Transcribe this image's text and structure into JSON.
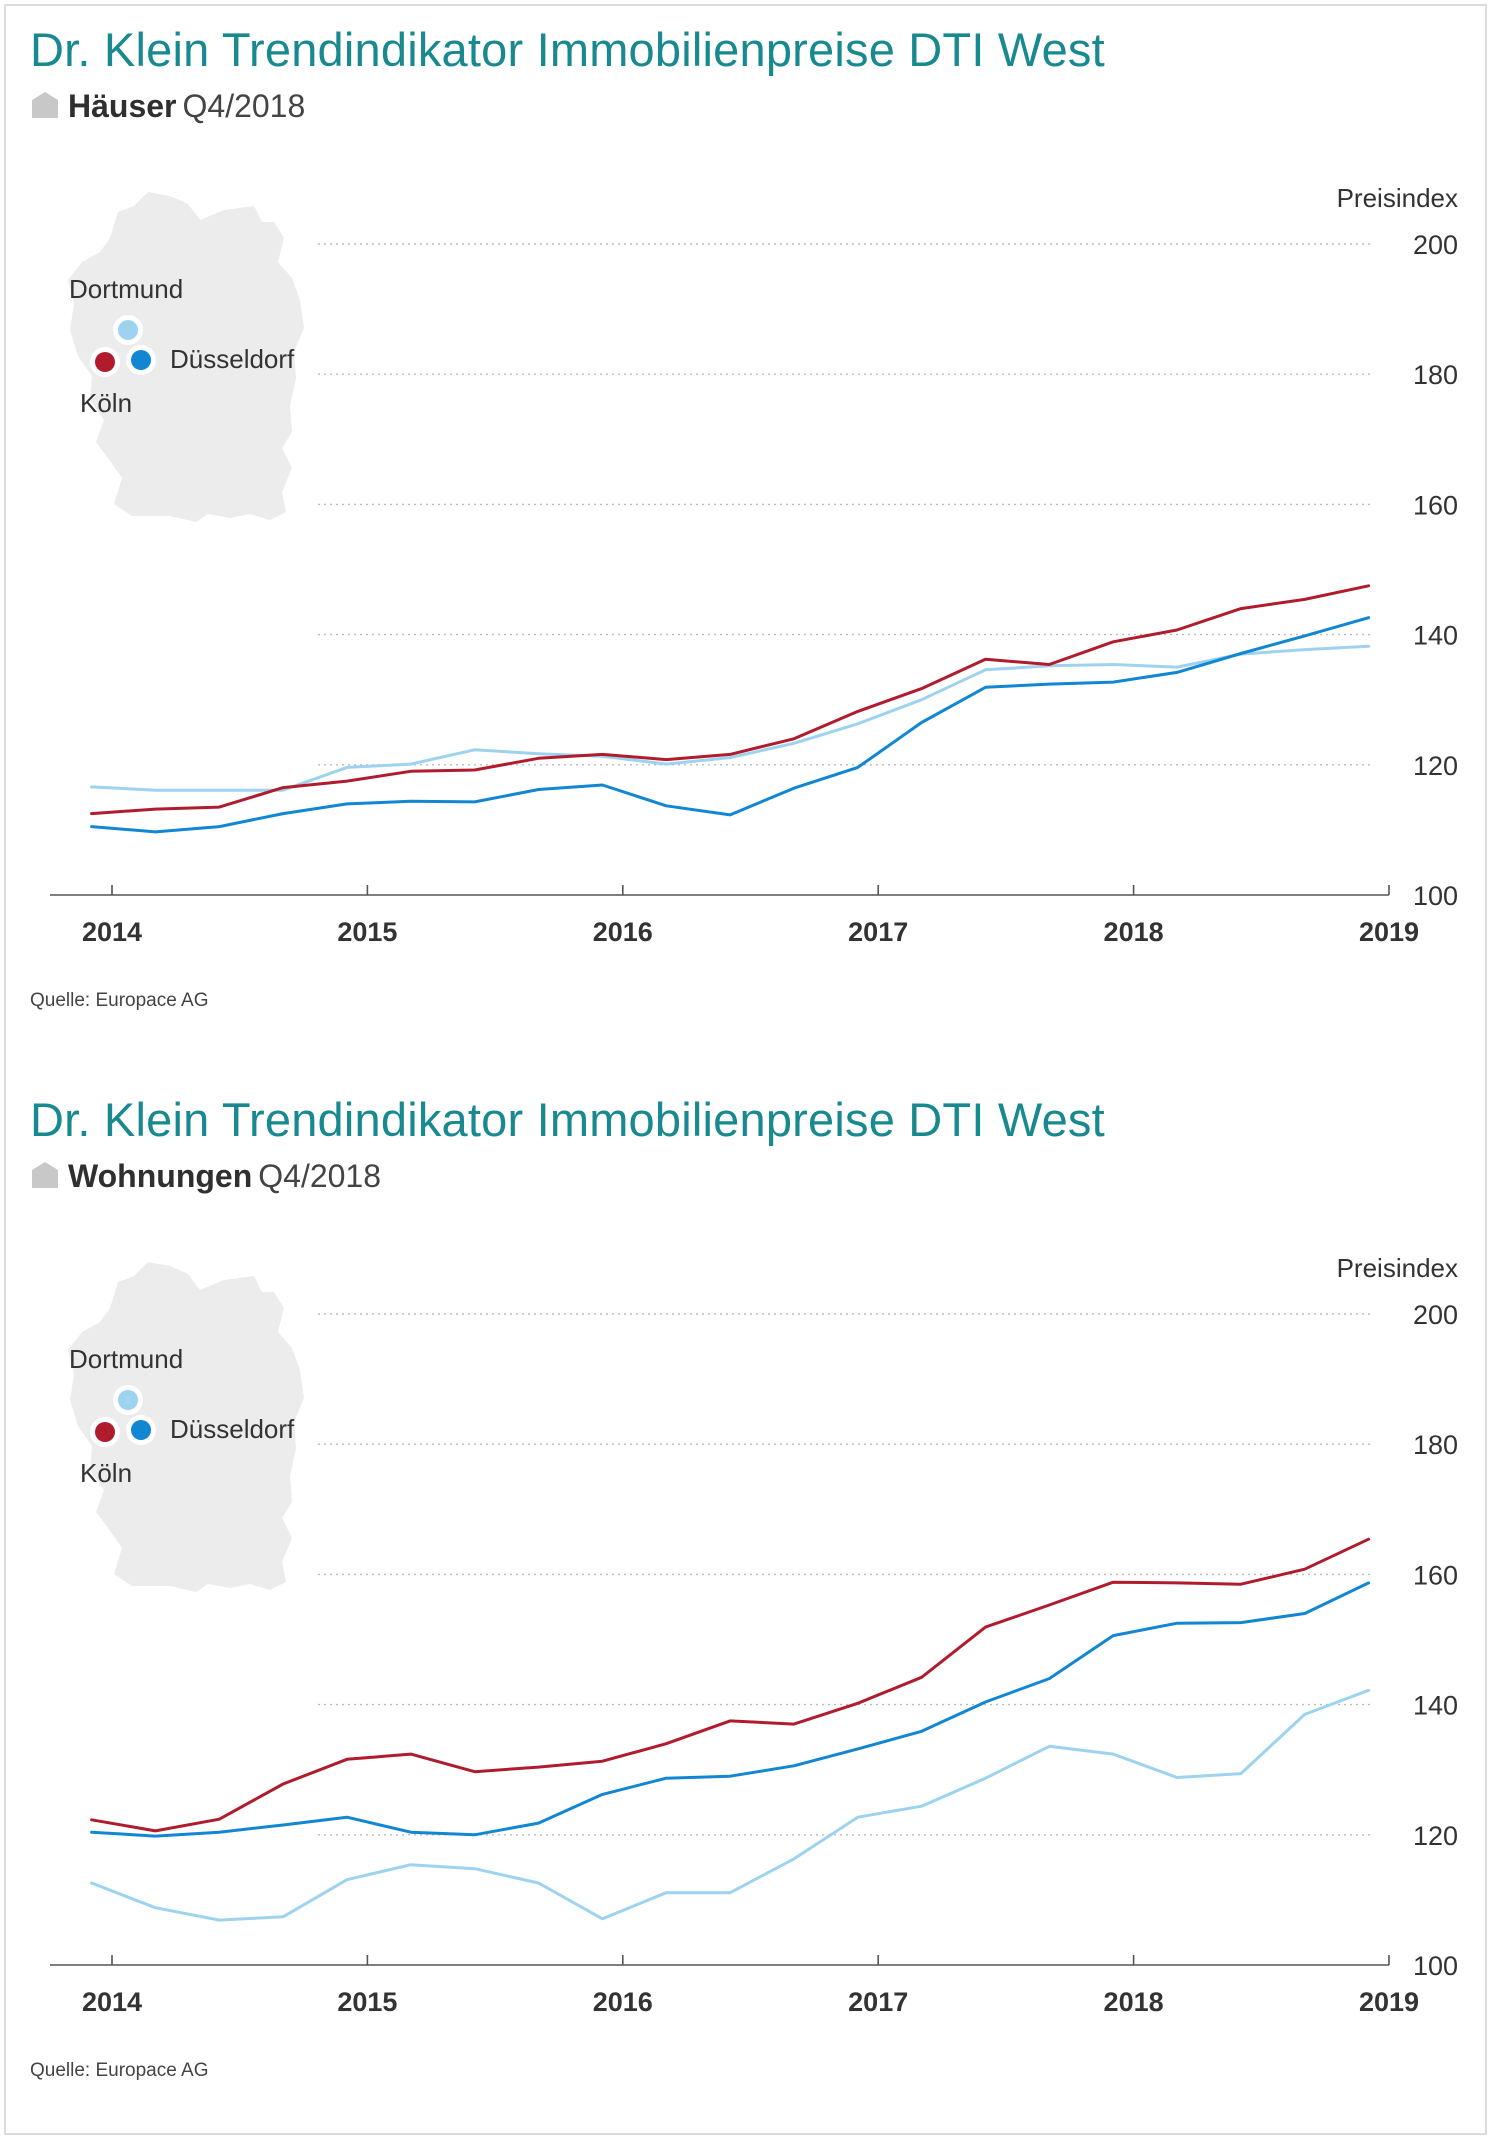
{
  "colors": {
    "title": "#17898f",
    "koeln": "#b01c2e",
    "duesseldorf": "#1187d4",
    "dortmund": "#9dd3ee",
    "grid": "#bbbbbb",
    "map": "#ececec"
  },
  "panels": [
    {
      "title": "Dr. Klein Trendindikator Immobilienpreise DTI West",
      "icon": "house-icon",
      "category": "Häuser",
      "period": "Q4/2018",
      "source": "Quelle: Europace AG",
      "map_labels": {
        "dortmund": "Dortmund",
        "duesseldorf": "Düsseldorf",
        "koeln": "Köln"
      },
      "chart_data": {
        "type": "line",
        "title": "",
        "xlabel": "",
        "ylabel": "Preisindex",
        "ylim": [
          100,
          200
        ],
        "xlim": [
          2014,
          2019
        ],
        "yticks": [
          "100",
          "120",
          "140",
          "160",
          "180",
          "200"
        ],
        "xticks": [
          "2014",
          "2015",
          "2016",
          "2017",
          "2018",
          "2019"
        ],
        "grid": true,
        "x": [
          2013.92,
          2014.17,
          2014.42,
          2014.67,
          2014.92,
          2015.17,
          2015.42,
          2015.67,
          2015.92,
          2016.17,
          2016.42,
          2016.67,
          2016.92,
          2017.17,
          2017.42,
          2017.67,
          2017.92,
          2018.17,
          2018.42,
          2018.67,
          2018.92
        ],
        "series": [
          {
            "name": "Köln",
            "color": "#b01c2e",
            "values": [
              112.5,
              113.2,
              113.5,
              116.5,
              117.5,
              119.0,
              119.2,
              121.0,
              121.6,
              120.8,
              121.6,
              124.0,
              128.2,
              131.7,
              136.2,
              135.4,
              138.9,
              140.7,
              144.0,
              145.4,
              147.5
            ]
          },
          {
            "name": "Düsseldorf",
            "color": "#1187d4",
            "values": [
              110.5,
              109.7,
              110.5,
              112.5,
              114.0,
              114.4,
              114.3,
              116.2,
              116.9,
              113.7,
              112.3,
              116.4,
              119.6,
              126.5,
              131.9,
              132.4,
              132.7,
              134.2,
              137.1,
              139.8,
              142.6
            ]
          },
          {
            "name": "Dortmund",
            "color": "#9dd3ee",
            "values": [
              116.6,
              116.1,
              116.1,
              116.1,
              119.6,
              120.1,
              122.3,
              121.7,
              121.3,
              120.1,
              121.1,
              123.3,
              126.3,
              130.0,
              134.6,
              135.2,
              135.4,
              135.0,
              137.0,
              137.7,
              138.2
            ]
          }
        ]
      }
    },
    {
      "title": "Dr. Klein Trendindikator Immobilienpreise DTI West",
      "icon": "house-icon",
      "category": "Wohnungen",
      "period": "Q4/2018",
      "source": "Quelle: Europace AG",
      "map_labels": {
        "dortmund": "Dortmund",
        "duesseldorf": "Düsseldorf",
        "koeln": "Köln"
      },
      "chart_data": {
        "type": "line",
        "title": "",
        "xlabel": "",
        "ylabel": "Preisindex",
        "ylim": [
          100,
          200
        ],
        "xlim": [
          2014,
          2019
        ],
        "yticks": [
          "100",
          "120",
          "140",
          "160",
          "180",
          "200"
        ],
        "xticks": [
          "2014",
          "2015",
          "2016",
          "2017",
          "2018",
          "2019"
        ],
        "grid": true,
        "x": [
          2013.92,
          2014.17,
          2014.42,
          2014.67,
          2014.92,
          2015.17,
          2015.42,
          2015.67,
          2015.92,
          2016.17,
          2016.42,
          2016.67,
          2016.92,
          2017.17,
          2017.42,
          2017.67,
          2017.92,
          2018.17,
          2018.42,
          2018.67,
          2018.92
        ],
        "series": [
          {
            "name": "Köln",
            "color": "#b01c2e",
            "values": [
              122.3,
              120.6,
              122.4,
              127.8,
              131.6,
              132.4,
              129.7,
              130.4,
              131.3,
              134.0,
              137.5,
              137.0,
              140.2,
              144.2,
              151.9,
              155.3,
              158.8,
              158.7,
              158.5,
              160.8,
              165.4
            ]
          },
          {
            "name": "Düsseldorf",
            "color": "#1187d4",
            "values": [
              120.4,
              119.8,
              120.4,
              121.5,
              122.7,
              120.4,
              120.0,
              121.8,
              126.2,
              128.7,
              129.0,
              130.6,
              133.2,
              135.9,
              140.4,
              144.0,
              150.6,
              152.5,
              152.6,
              154.0,
              158.7
            ]
          },
          {
            "name": "Dortmund",
            "color": "#9dd3ee",
            "values": [
              112.6,
              108.8,
              106.9,
              107.4,
              113.1,
              115.4,
              114.8,
              112.6,
              107.1,
              111.1,
              111.1,
              116.3,
              122.7,
              124.4,
              128.7,
              133.6,
              132.4,
              128.8,
              129.4,
              138.5,
              142.2
            ]
          }
        ]
      }
    }
  ]
}
